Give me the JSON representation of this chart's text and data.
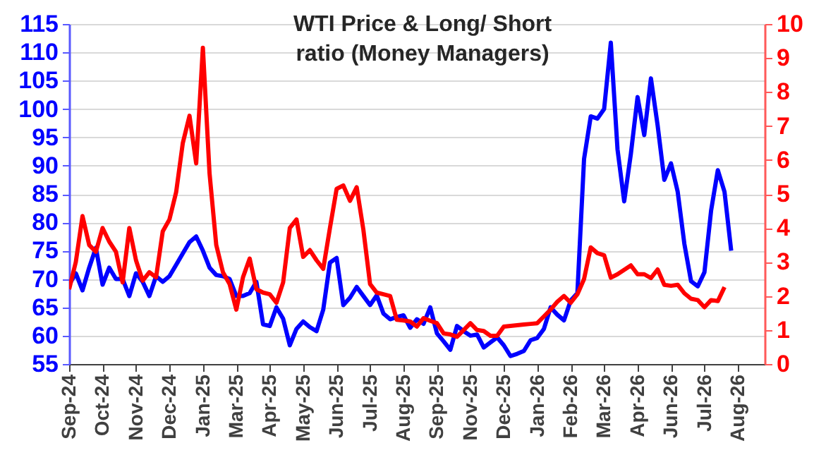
{
  "chart_data": {
    "type": "line",
    "title": "WTI Price & Long/ Short ratio (Money Managers)",
    "categories": [
      "Sep-24",
      null,
      null,
      null,
      null,
      "Oct-24",
      null,
      null,
      null,
      null,
      "Nov-24",
      null,
      null,
      null,
      null,
      "Dec-24",
      null,
      null,
      null,
      null,
      "Jan-25",
      null,
      null,
      null,
      null,
      "Mar-25",
      null,
      null,
      null,
      null,
      "Apr-25",
      null,
      null,
      null,
      null,
      "May-25",
      null,
      null,
      null,
      null,
      "Jun-25",
      null,
      null,
      null,
      null,
      "Jul-25",
      null,
      null,
      null,
      null,
      "Aug-25",
      null,
      null,
      null,
      null,
      "Sep-25",
      null,
      null,
      null,
      null,
      "Nov-25",
      null,
      null,
      null,
      null,
      "Dec-25",
      null,
      null,
      null,
      null,
      "Jan-26",
      null,
      null,
      null,
      null,
      "Feb-26",
      null,
      null,
      null,
      null,
      "Mar-26",
      null,
      null,
      null,
      null,
      "Apr-26",
      null,
      null,
      null,
      null,
      "Jun-26",
      null,
      null,
      null,
      null,
      "Jul-26",
      null,
      null,
      null,
      null,
      "Aug-26",
      null,
      null,
      null,
      null
    ],
    "ylim": [
      55,
      115
    ],
    "yticks": [
      55,
      60,
      65,
      70,
      75,
      80,
      85,
      90,
      95,
      100,
      105,
      110,
      115
    ],
    "y2lim": [
      0,
      10
    ],
    "y2ticks": [
      0,
      1,
      2,
      3,
      4,
      5,
      6,
      7,
      8,
      9,
      10
    ],
    "grid": "y",
    "legend": false,
    "line_style": "solid",
    "series": [
      {
        "color": "#0000ff",
        "values": [
          69,
          71,
          68,
          72,
          75.5,
          69,
          72,
          70,
          70,
          67,
          71,
          69.5,
          67,
          70.5,
          69.5,
          70.5,
          72.5,
          74.5,
          76.5,
          77.5,
          75,
          72,
          70.7,
          70.5,
          70,
          67,
          67,
          67.5,
          69.5,
          62,
          61.7,
          65,
          63,
          58.3,
          61.2,
          62.5,
          61.5,
          60.8,
          64.6,
          72.9,
          73.7,
          65.4,
          66.7,
          68.6,
          67,
          65.4,
          67.1,
          63.9,
          62.9,
          63.3,
          63.6,
          61.4,
          62.9,
          62.1,
          65,
          60.4,
          59,
          57.5,
          61.7,
          60.8,
          60,
          60.2,
          57.9,
          58.8,
          59.7,
          58.3,
          56.4,
          56.8,
          57.3,
          59.2,
          59.6,
          61.2,
          65,
          63.7,
          62.7,
          66.2,
          67.5,
          91.2,
          98.7,
          98.3,
          100,
          111.7,
          92.9,
          83.7,
          92.1,
          102.1,
          95.4,
          105.4,
          97.1,
          87.5,
          90.4,
          85.4,
          76.2,
          69.6,
          68.7,
          71.2,
          82.1,
          89.2,
          85.4,
          75,
          null,
          null,
          null,
          null,
          null
        ]
      },
      {
        "color": "#ff0000",
        "axis": "y2",
        "values": [
          2.2,
          3,
          4.35,
          3.5,
          3.3,
          4,
          3.6,
          3.3,
          2.4,
          4,
          3.05,
          2.45,
          2.7,
          2.55,
          3.9,
          4.25,
          5.05,
          6.5,
          7.3,
          5.9,
          9.3,
          5.6,
          3.5,
          2.7,
          2.35,
          1.6,
          2.55,
          3.1,
          2.2,
          2.1,
          2.05,
          1.8,
          2.4,
          4,
          4.25,
          3.15,
          3.35,
          3.05,
          2.8,
          4,
          5.15,
          5.25,
          4.8,
          5.2,
          3.95,
          2.35,
          2.1,
          2.05,
          2,
          1.3,
          1.28,
          1.25,
          1.1,
          1.35,
          1.27,
          1.2,
          0.9,
          0.87,
          0.8,
          1,
          1.2,
          1,
          0.97,
          0.83,
          0.83,
          1.1,
          1.12,
          1.14,
          1.16,
          1.18,
          1.2,
          1.4,
          1.6,
          1.83,
          2,
          1.8,
          2.05,
          2.5,
          3.43,
          3.26,
          3.2,
          2.54,
          2.64,
          2.77,
          2.9,
          2.64,
          2.64,
          2.53,
          2.78,
          2.33,
          2.3,
          2.33,
          2.08,
          1.92,
          1.88,
          1.67,
          1.88,
          1.85,
          2.26,
          null,
          null,
          null,
          null,
          null,
          null
        ]
      }
    ]
  }
}
